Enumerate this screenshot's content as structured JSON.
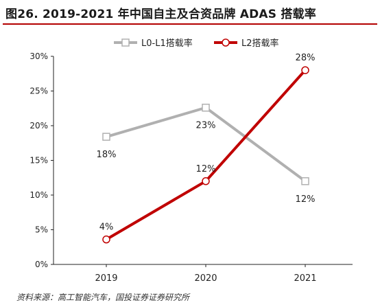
{
  "header": {
    "title": "图26. 2019-2021 年中国自主及合资品牌 ADAS 搭载率"
  },
  "footer": {
    "source": "资料来源：高工智能汽车，国投证券证券研究所"
  },
  "colors": {
    "title_rule": "#b30000"
  },
  "chart_data": {
    "type": "line",
    "title": "",
    "xlabel": "",
    "ylabel": "",
    "categories": [
      "2019",
      "2020",
      "2021"
    ],
    "ylim": [
      0,
      30
    ],
    "yticks": [
      0,
      5,
      10,
      15,
      20,
      25,
      30
    ],
    "ytick_labels": [
      "0%",
      "5%",
      "10%",
      "15%",
      "20%",
      "25%",
      "30%"
    ],
    "grid": false,
    "legend_position": "top-center",
    "series": [
      {
        "name": "L0-L1搭载率",
        "values": [
          18.4,
          22.6,
          12.0
        ],
        "labels": [
          "18%",
          "23%",
          "12%"
        ],
        "color": "#b0b0b0",
        "marker": "square",
        "label_side": [
          "below",
          "below",
          "below"
        ]
      },
      {
        "name": "L2搭载率",
        "values": [
          3.6,
          12.0,
          28.0
        ],
        "labels": [
          "4%",
          "12%",
          "28%"
        ],
        "color": "#c00000",
        "marker": "circle",
        "label_side": [
          "above",
          "above",
          "above"
        ]
      }
    ]
  }
}
